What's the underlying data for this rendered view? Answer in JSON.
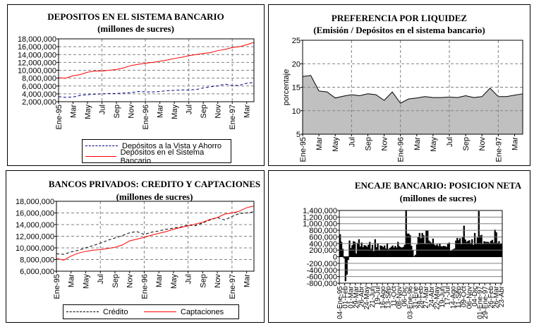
{
  "chart_data": [
    {
      "id": "depositos",
      "type": "line",
      "title": "DEPOSITOS EN EL SISTEMA BANCARIO",
      "subtitle": "(millones de sucres)",
      "ylim": [
        2000000,
        18000000
      ],
      "yticks": [
        2000000,
        4000000,
        6000000,
        8000000,
        10000000,
        12000000,
        14000000,
        16000000,
        18000000
      ],
      "xlabels": [
        "Ene-95",
        "",
        "Mar",
        "",
        "May",
        "",
        "Jul",
        "",
        "Sep",
        "",
        "Nov",
        "",
        "Ene-96",
        "",
        "Mar",
        "",
        "May",
        "",
        "Jul",
        "",
        "Sep",
        "",
        "Nov",
        "",
        "Ene-97",
        "",
        "Mar",
        ""
      ],
      "grid": true,
      "legend": "bottom",
      "series": [
        {
          "name": "Depósitos a la Vista y Ahorro",
          "color": "#000080",
          "dash": true,
          "values": [
            3300000,
            3100000,
            3200000,
            3600000,
            3800000,
            3900000,
            4000000,
            4100000,
            4100000,
            4200000,
            4300000,
            4600000,
            4500000,
            4500000,
            4600000,
            4800000,
            4900000,
            5000000,
            5000000,
            5100000,
            5500000,
            5800000,
            6000000,
            6500000,
            6100000,
            6200000,
            6700000,
            6900000
          ]
        },
        {
          "name": "Depósitos en el Sistema Bancario",
          "color": "#ff0000",
          "dash": false,
          "values": [
            8100000,
            8000000,
            8600000,
            8900000,
            9500000,
            9800000,
            9800000,
            10000000,
            10200000,
            10600000,
            11200000,
            11500000,
            11800000,
            12000000,
            12300000,
            12600000,
            13000000,
            13300000,
            13700000,
            14000000,
            14300000,
            14500000,
            15000000,
            15300000,
            15800000,
            16000000,
            16500000,
            17100000
          ]
        }
      ]
    },
    {
      "id": "liquidez",
      "type": "area",
      "title": "PREFERENCIA POR LIQUIDEZ",
      "subtitle": "(Emisión / Depósitos en el sistema bancario)",
      "ylabel": "porcentaje",
      "ylim": [
        5,
        25
      ],
      "yticks": [
        5,
        10,
        15,
        20,
        25
      ],
      "xlabels": [
        "Ene-95",
        "",
        "Mar",
        "",
        "May",
        "",
        "Jul",
        "",
        "Sep",
        "",
        "Nov",
        "",
        "Ene-96",
        "",
        "Mar",
        "",
        "May",
        "",
        "Jul",
        "",
        "Sep",
        "",
        "Nov",
        "",
        "Ene-97",
        "",
        "Mar",
        ""
      ],
      "grid": true,
      "series": [
        {
          "name": "porcentaje",
          "color": "#c0c0c0",
          "values": [
            17.3,
            17.5,
            14.2,
            14.0,
            12.7,
            13.1,
            13.4,
            13.2,
            13.6,
            13.4,
            12.2,
            14.0,
            11.6,
            12.5,
            12.7,
            13.0,
            12.8,
            12.8,
            12.9,
            12.8,
            13.2,
            12.8,
            13.0,
            14.8,
            13.0,
            13.0,
            13.3,
            13.6
          ]
        }
      ]
    },
    {
      "id": "bancos",
      "type": "line",
      "title": "BANCOS PRIVADOS: CREDITO Y CAPTACIONES",
      "subtitle": "(millones de sucres)",
      "ylim": [
        6000000,
        18000000
      ],
      "yticks": [
        6000000,
        8000000,
        10000000,
        12000000,
        14000000,
        16000000,
        18000000
      ],
      "xlabels": [
        "Ene-95",
        "",
        "Mar",
        "",
        "May",
        "",
        "Jul",
        "",
        "Sep",
        "",
        "Nov",
        "",
        "Ene-96",
        "",
        "Mar",
        "",
        "May",
        "",
        "Jul",
        "",
        "Sep",
        "",
        "Nov",
        "",
        "Ene-97",
        "",
        "Mar",
        ""
      ],
      "grid": true,
      "legend": "bottom",
      "series": [
        {
          "name": "Crédito",
          "color": "#000000",
          "dash": true,
          "values": [
            9000000,
            8900000,
            9300000,
            9600000,
            10000000,
            10400000,
            10800000,
            11300000,
            11700000,
            12100000,
            12600000,
            12800000,
            12300000,
            12700000,
            12900000,
            13200000,
            13400000,
            13600000,
            13900000,
            13800000,
            14300000,
            14800000,
            15200000,
            14800000,
            15400000,
            15900000,
            16000000,
            16200000
          ]
        },
        {
          "name": "Captaciones",
          "color": "#ff0000",
          "dash": false,
          "values": [
            8200000,
            7900000,
            8600000,
            9100000,
            9400000,
            9600000,
            9700000,
            9900000,
            10100000,
            10500000,
            11200000,
            11500000,
            11800000,
            12200000,
            12500000,
            12800000,
            13200000,
            13500000,
            13800000,
            14100000,
            14400000,
            14900000,
            15200000,
            15800000,
            16000000,
            16300000,
            16900000,
            17200000
          ]
        }
      ]
    },
    {
      "id": "encaje",
      "type": "bar",
      "title": "ENCAJE BANCARIO:  POSICION NETA",
      "subtitle": "(millones de sucres)",
      "ylim": [
        -800000,
        1400000
      ],
      "yticks": [
        -800000,
        -600000,
        -400000,
        -200000,
        0,
        200000,
        400000,
        600000,
        800000,
        1000000,
        1200000,
        1400000
      ],
      "xlabels": [
        "04-Ene-95",
        "01-Feb",
        "01-Mar",
        "29-Mar",
        "26-Abr",
        "24-May",
        "21-Jun",
        "19-Jul",
        "16-Ago",
        "13-Sep",
        "11-Oct",
        "08-Nov",
        "06-Dic",
        "03-Ene-96",
        "31-Ene",
        "28-Feb",
        "27-Mar",
        "24-Abr",
        "22-May",
        "19-Jun",
        "17-Jul",
        "14-Ago",
        "11-Sep",
        "09-Oct",
        "06-Nov",
        "04-Dic",
        "01-Ene-97",
        "29-Ene-97",
        "26-Feb",
        "26-Mar",
        "23-Abr"
      ],
      "label_every": 4,
      "grid": true,
      "series": [
        {
          "name": "Posición neta",
          "color": "#000000",
          "unit": "thousands",
          "values": [
            680,
            450,
            240,
            -50,
            -740,
            -540,
            -100,
            490,
            260,
            350,
            470,
            450,
            100,
            420,
            530,
            310,
            430,
            290,
            350,
            340,
            300,
            360,
            450,
            240,
            360,
            170,
            530,
            290,
            390,
            200,
            340,
            330,
            290,
            340,
            250,
            410,
            230,
            270,
            300,
            340,
            280,
            330,
            280,
            450,
            320,
            290,
            280,
            300,
            360,
            1400,
            700,
            700,
            650,
            330,
            200,
            20,
            60,
            370,
            610,
            720,
            560,
            720,
            650,
            390,
            790,
            790,
            490,
            450,
            420,
            550,
            370,
            340,
            380,
            320,
            400,
            320,
            310,
            330,
            320,
            300,
            400,
            430,
            180,
            190,
            230,
            250,
            490,
            570,
            500,
            560,
            380,
            610,
            940,
            520,
            450,
            480,
            500,
            420,
            530,
            360,
            720,
            390,
            580,
            1380,
            640,
            660,
            390,
            470,
            450,
            450,
            450,
            420,
            480,
            510,
            430,
            820,
            740,
            420,
            470,
            390,
            400
          ]
        }
      ]
    }
  ]
}
